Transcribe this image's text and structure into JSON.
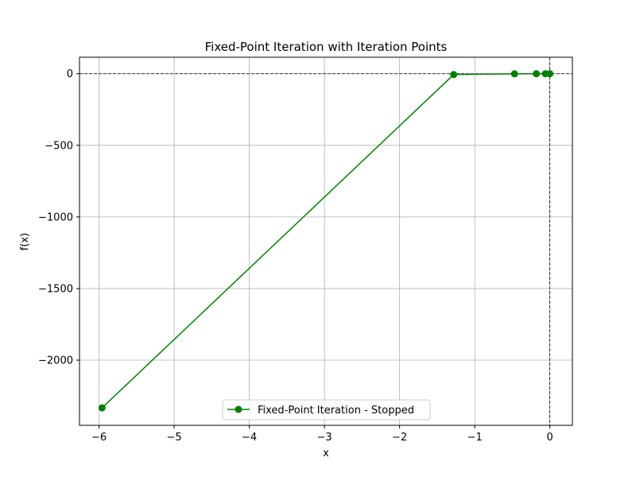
{
  "chart_data": {
    "type": "line",
    "title": "Fixed-Point Iteration with Iteration Points",
    "xlabel": "x",
    "ylabel": "f(x)",
    "xlim": [
      -6.26,
      0.3
    ],
    "ylim": [
      -2455,
      115
    ],
    "x_ticks": [
      -6,
      -5,
      -4,
      -3,
      -2,
      -1,
      0
    ],
    "x_tick_labels": [
      "−6",
      "−5",
      "−4",
      "−3",
      "−2",
      "−1",
      "0"
    ],
    "y_ticks": [
      0,
      -500,
      -1000,
      -1500,
      -2000
    ],
    "y_tick_labels": [
      "0",
      "−500",
      "−1000",
      "−1500",
      "−2000"
    ],
    "grid": true,
    "reference_lines": [
      {
        "orientation": "horizontal",
        "value": 0,
        "style": "dashed",
        "color": "#000000"
      },
      {
        "orientation": "vertical",
        "value": 0,
        "style": "dashed",
        "color": "#000000"
      }
    ],
    "legend_position": "bottom-center",
    "series": [
      {
        "name": "Fixed-Point Iteration - Stopped",
        "color": "#008000",
        "marker": "circle",
        "points": [
          {
            "x": -5.96,
            "y": -2333
          },
          {
            "x": -1.28,
            "y": -6
          },
          {
            "x": -0.47,
            "y": -1
          },
          {
            "x": -0.18,
            "y": 0
          },
          {
            "x": -0.06,
            "y": 0
          },
          {
            "x": 0.0,
            "y": 0
          }
        ]
      }
    ]
  }
}
